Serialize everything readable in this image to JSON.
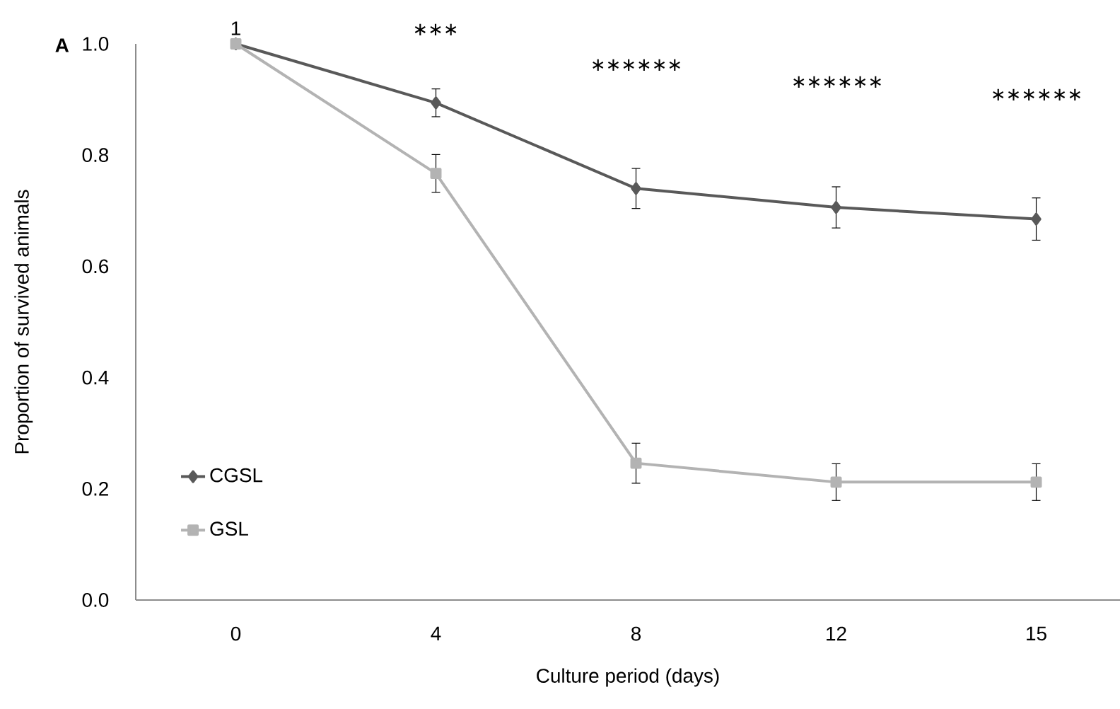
{
  "chart_data": {
    "type": "line",
    "xlabel": "Culture period (days)",
    "ylabel": "Proportion of survived animals",
    "categories": [
      "0",
      "4",
      "8",
      "12",
      "15"
    ],
    "series": [
      {
        "name": "CGSL",
        "color": "#595959",
        "marker": "diamond",
        "values": [
          1,
          0.894,
          0.74,
          0.706,
          0.685
        ],
        "errors": [
          null,
          0.025,
          0.036,
          0.037,
          0.038
        ]
      },
      {
        "name": "GSL",
        "color": "#b3b3b3",
        "marker": "square",
        "values": [
          1,
          0.767,
          0.246,
          0.212,
          0.212
        ],
        "errors": [
          null,
          0.034,
          0.036,
          0.033,
          0.033
        ]
      }
    ],
    "ylim": [
      0,
      1
    ],
    "yticks": [
      {
        "value": 0,
        "label": "0.0"
      },
      {
        "value": 0.2,
        "label": "0.2"
      },
      {
        "value": 0.4,
        "label": "0.4"
      },
      {
        "value": 0.6,
        "label": "0.6"
      },
      {
        "value": 0.8,
        "label": "0.8"
      },
      {
        "value": 1,
        "label": "1.0"
      }
    ],
    "grid": false,
    "legend": "bottom left",
    "annotations": [
      "A",
      {
        "text": "1",
        "x": "0",
        "y": 1
      },
      "∗∗∗",
      "∗∗∗∗∗∗",
      "∗∗∗∗∗∗",
      "∗∗∗∗∗∗"
    ]
  }
}
